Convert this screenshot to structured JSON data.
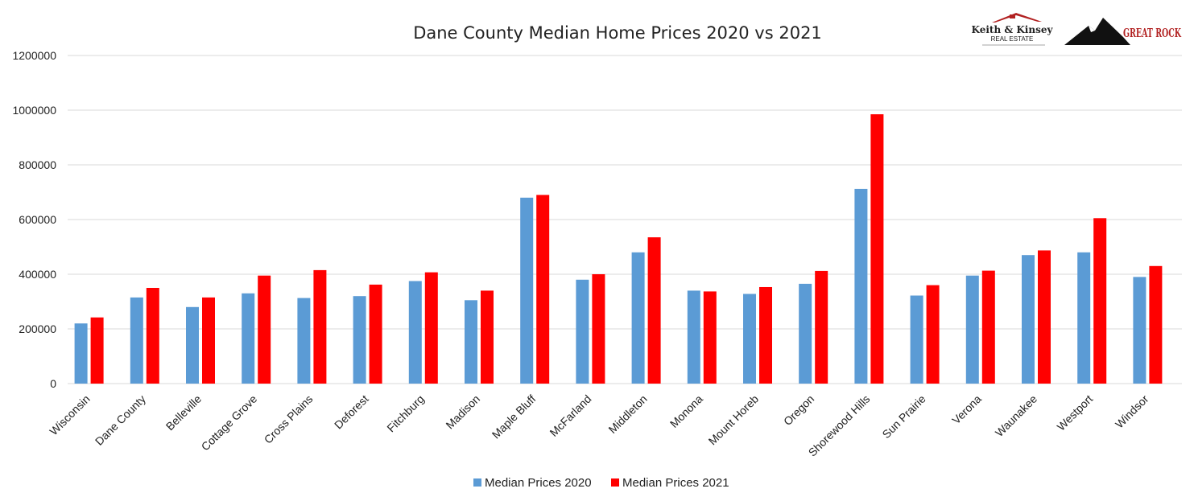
{
  "colors": {
    "series_2020": "#5b9bd5",
    "series_2021": "#ff0000",
    "logo_red": "#b22222"
  },
  "logos": [
    {
      "name": "keith-kinsey-logo",
      "text": "Keith & Kinsey",
      "subtext": "REAL ESTATE"
    },
    {
      "name": "great-rock-logo",
      "text": "GREAT ROCK"
    }
  ],
  "chart_data": {
    "type": "bar",
    "title": "Dane County Median Home Prices 2020 vs 2021",
    "xlabel": "",
    "ylabel": "",
    "ylim": [
      0,
      1200000
    ],
    "yticks": [
      "0",
      "200000",
      "400000",
      "600000",
      "800000",
      "1000000",
      "1200000"
    ],
    "grid": true,
    "legend_position": "bottom",
    "categories": [
      "Wisconsin",
      "Dane County",
      "Belleville",
      "Cottage Grove",
      "Cross Plains",
      "Deforest",
      "Fitchburg",
      "Madison",
      "Maple Bluff",
      "McFarland",
      "Middleton",
      "Monona",
      "Mount Horeb",
      "Oregon",
      "Shorewood Hills",
      "Sun Prairie",
      "Verona",
      "Waunakee",
      "Westport",
      "Windsor"
    ],
    "series": [
      {
        "name": "Median Prices 2020",
        "values": [
          220000,
          315000,
          280000,
          330000,
          313000,
          320000,
          375000,
          305000,
          680000,
          380000,
          480000,
          340000,
          328000,
          365000,
          712000,
          322000,
          395000,
          470000,
          480000,
          390000
        ]
      },
      {
        "name": "Median Prices 2021",
        "values": [
          242000,
          350000,
          315000,
          395000,
          415000,
          362000,
          407000,
          340000,
          690000,
          400000,
          535000,
          337000,
          353000,
          412000,
          985000,
          360000,
          413000,
          487000,
          605000,
          430000
        ]
      }
    ]
  }
}
